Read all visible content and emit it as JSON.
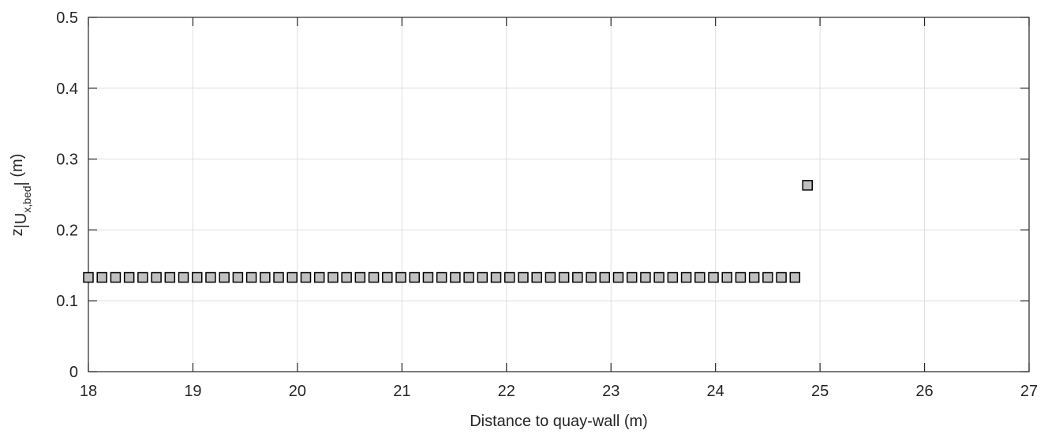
{
  "chart_data": {
    "type": "scatter",
    "title": "",
    "xlabel": "Distance to quay-wall (m)",
    "ylabel": {
      "base": "z",
      "open": "|U",
      "subscript": "x,bed",
      "close": "|",
      "unit": " (m)"
    },
    "xlim": [
      18,
      27
    ],
    "ylim": [
      0,
      0.5
    ],
    "xticks": [
      18,
      19,
      20,
      21,
      22,
      23,
      24,
      25,
      26,
      27
    ],
    "xtick_labels": [
      "18",
      "19",
      "20",
      "21",
      "22",
      "23",
      "24",
      "25",
      "26",
      "27"
    ],
    "yticks": [
      0,
      0.1,
      0.2,
      0.3,
      0.4,
      0.5
    ],
    "ytick_labels": [
      "0",
      "0.1",
      "0.2",
      "0.3",
      "0.4",
      "0.5"
    ],
    "grid": true,
    "marker": "square",
    "marker_fill": "#c0c0c0",
    "marker_edge": "#000000",
    "series": [
      {
        "points": {
          "x_start": 18.0,
          "x_step": 0.13,
          "count": 53,
          "y": 0.133
        },
        "extra_points": [
          {
            "x": 24.88,
            "y": 0.263
          }
        ]
      }
    ]
  }
}
